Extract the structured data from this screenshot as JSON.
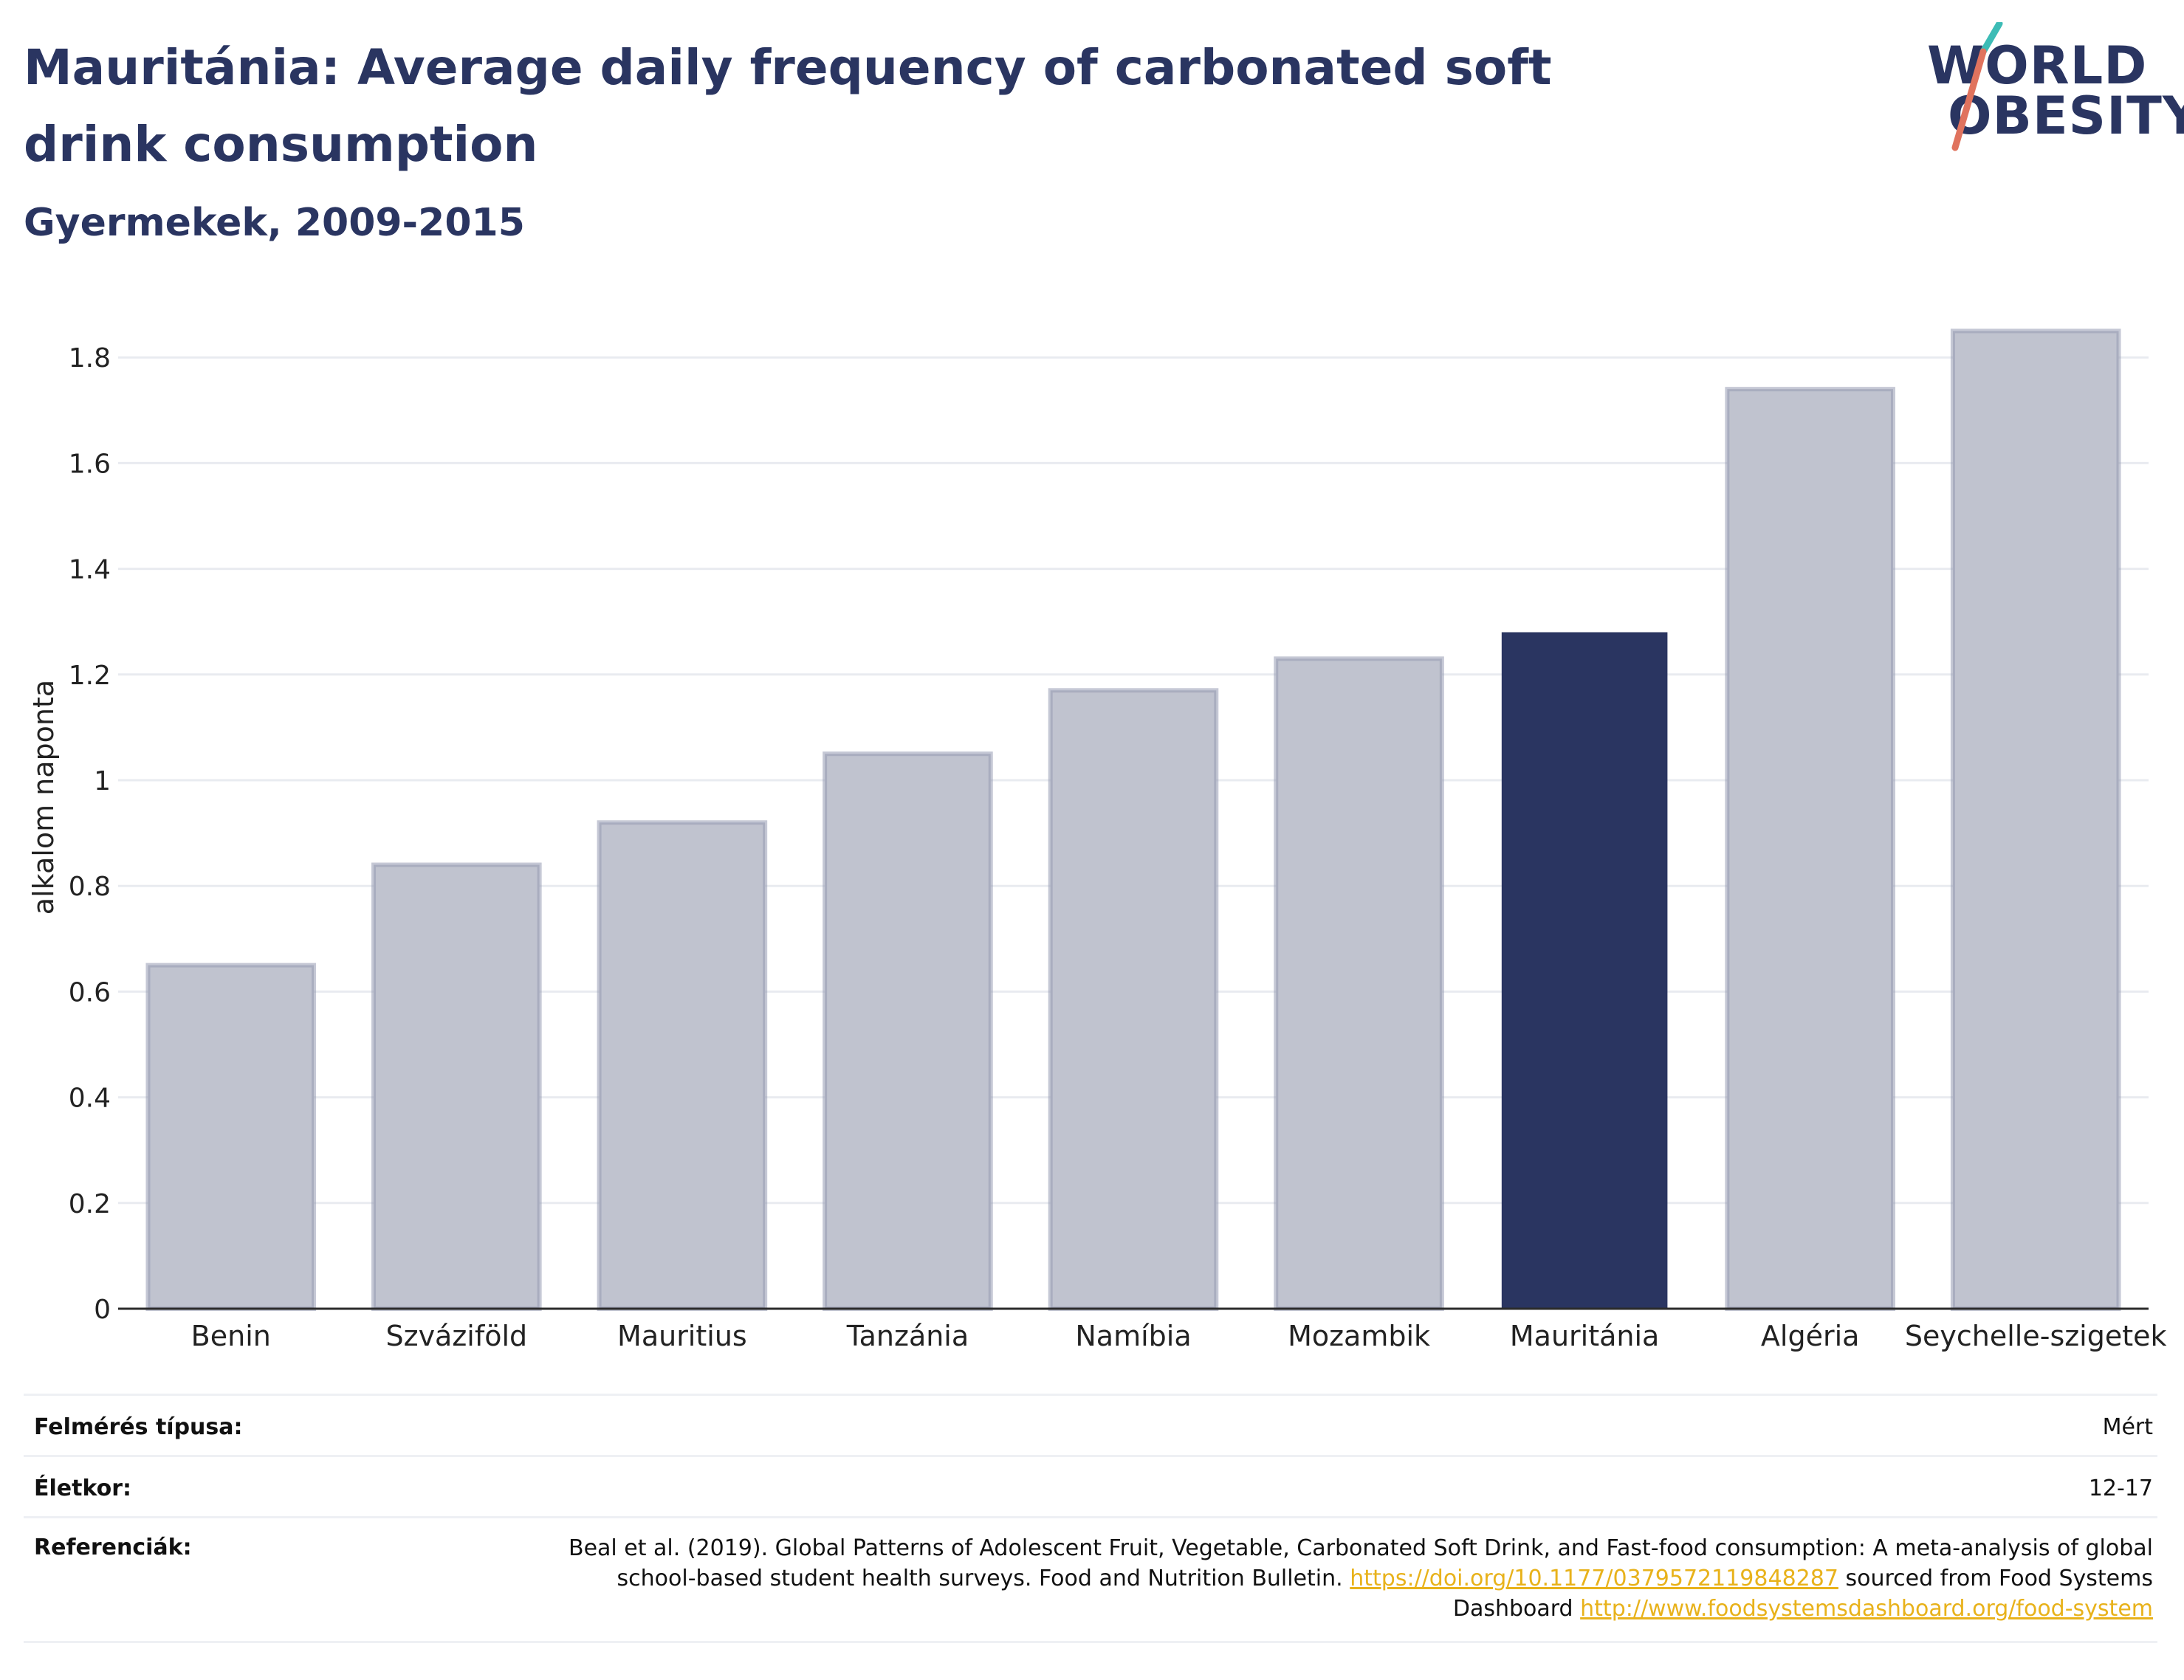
{
  "header": {
    "title": "Mauritánia: Average daily frequency of carbonated soft drink consumption",
    "subtitle": "Gyermekek, 2009-2015"
  },
  "logo": {
    "line1": "WORLD",
    "line2": "OBESITY"
  },
  "colors": {
    "highlight": "#2a3561",
    "muted": "#c0c3cf",
    "muted_border": "#969bb2",
    "link": "#e8b21b",
    "title": "#2a3561"
  },
  "chart_data": {
    "type": "bar",
    "title": "Mauritánia: Average daily frequency of carbonated soft drink consumption",
    "subtitle": "Gyermekek, 2009-2015",
    "xlabel": "",
    "ylabel": "alkalom naponta",
    "ylim": [
      0,
      1.9
    ],
    "yticks": [
      0,
      0.2,
      0.4,
      0.6,
      0.8,
      1,
      1.2,
      1.4,
      1.6,
      1.8
    ],
    "ytick_labels": [
      "0",
      "0.2",
      "0.4",
      "0.6",
      "0.8",
      "1",
      "1.2",
      "1.4",
      "1.6",
      "1.8"
    ],
    "grid": true,
    "highlight": "Mauritánia",
    "categories": [
      "Benin",
      "Szváziföld",
      "Mauritius",
      "Tanzánia",
      "Namíbia",
      "Mozambik",
      "Mauritánia",
      "Algéria",
      "Seychelle-szigetek"
    ],
    "values": [
      0.65,
      0.84,
      0.92,
      1.05,
      1.17,
      1.23,
      1.28,
      1.74,
      1.85
    ]
  },
  "info": {
    "survey_type_label": "Felmérés típusa:",
    "survey_type_value": "Mért",
    "age_label": "Életkor:",
    "age_value": "12-17",
    "references_label": "Referenciák:",
    "reference_text_1": "Beal et al. (2019). Global Patterns of Adolescent Fruit, Vegetable, Carbonated Soft Drink, and Fast-food consumption: A meta-analysis of global school-based student health surveys. Food and Nutrition Bulletin.",
    "reference_link_1": "https://doi.org/10.1177/0379572119848287",
    "reference_text_2": "sourced from Food Systems Dashboard",
    "reference_link_2": "http://www.foodsystemsdashboard.org/food-system"
  }
}
